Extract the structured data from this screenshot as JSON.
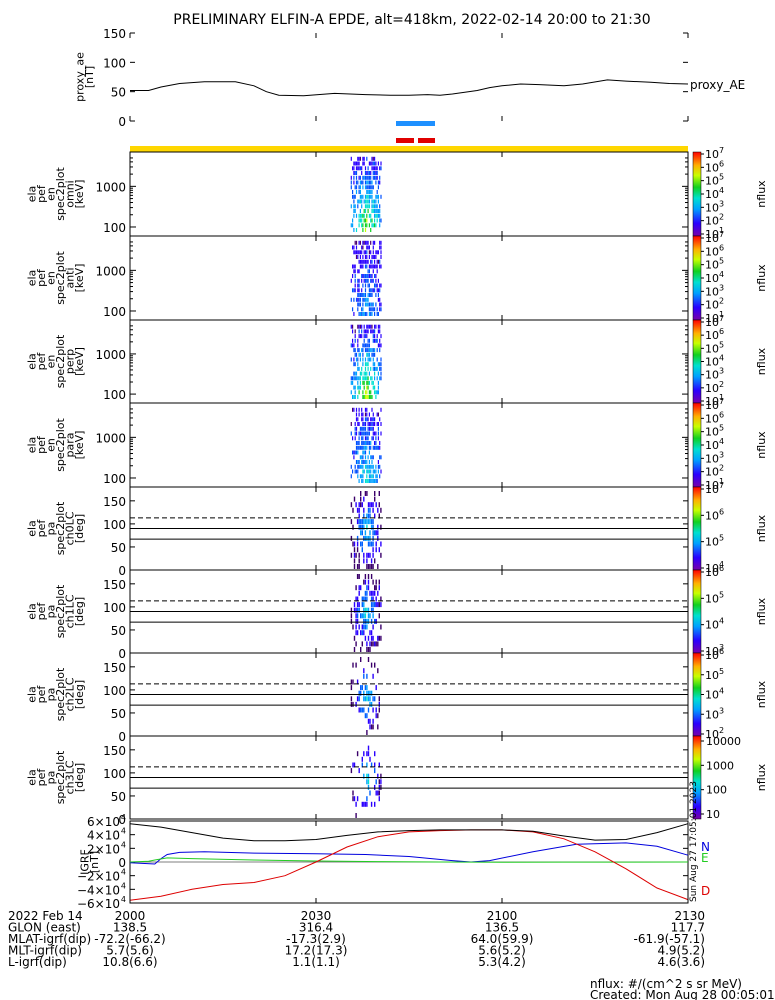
{
  "title": "PRELIMINARY ELFIN-A EPDE, alt=418km, 2022-02-14 20:00 to 21:30",
  "colors": {
    "blue": "#1e90ff",
    "red": "#e00000",
    "yellow": "#ffd700",
    "comp_N": "#0000dd",
    "comp_E": "#22cc22",
    "comp_D": "#dd0000",
    "comp_total": "#000000"
  },
  "time_axis": {
    "range_min": [
      0,
      90
    ],
    "ticks": [
      {
        "min": 0,
        "label": "2000"
      },
      {
        "min": 30,
        "label": "2030"
      },
      {
        "min": 60,
        "label": "2100"
      },
      {
        "min": 90,
        "label": "2130"
      }
    ]
  },
  "chart_data": [
    {
      "type": "line",
      "id": "proxy_ae",
      "ylabel": [
        "proxy_ae",
        "[nT]"
      ],
      "ylim": [
        0,
        150
      ],
      "yticks": [
        "0",
        "50",
        "100",
        "150"
      ],
      "series": [
        {
          "name": "proxy_AE",
          "x": [
            0,
            3,
            5,
            8,
            12,
            17,
            20,
            22,
            24,
            28,
            33,
            38,
            42,
            45,
            48,
            50,
            52,
            56,
            58,
            60,
            63,
            66,
            70,
            73,
            77,
            80,
            84,
            87,
            90
          ],
          "y": [
            52,
            52,
            58,
            64,
            67,
            67,
            60,
            50,
            44,
            43,
            47,
            45,
            44,
            44,
            45,
            44,
            46,
            52,
            57,
            60,
            63,
            62,
            60,
            63,
            70,
            68,
            66,
            64,
            63
          ]
        }
      ]
    },
    {
      "type": "heatmap",
      "id": "en_omni",
      "ylabel": [
        "ela",
        "pef",
        "en",
        "spec2plot",
        "omni",
        "[keV]"
      ],
      "yticks": [
        "100",
        "1000"
      ],
      "colorbar": {
        "labels": [
          "10",
          "10",
          "10",
          "10",
          "10",
          "10",
          "10"
        ],
        "exps": [
          "1",
          "2",
          "3",
          "4",
          "5",
          "6",
          "7"
        ],
        "title": "nflux"
      }
    },
    {
      "type": "heatmap",
      "id": "en_anti",
      "ylabel": [
        "ela",
        "pef",
        "en",
        "spec2plot",
        "anti",
        "[keV]"
      ],
      "yticks": [
        "100",
        "1000"
      ],
      "colorbar": {
        "labels": [
          "10",
          "10",
          "10",
          "10",
          "10",
          "10",
          "10"
        ],
        "exps": [
          "1",
          "2",
          "3",
          "4",
          "5",
          "6",
          "7"
        ],
        "title": "nflux"
      }
    },
    {
      "type": "heatmap",
      "id": "en_perp",
      "ylabel": [
        "ela",
        "pef",
        "en",
        "spec2plot",
        "perp",
        "[keV]"
      ],
      "yticks": [
        "100",
        "1000"
      ],
      "colorbar": {
        "labels": [
          "10",
          "10",
          "10",
          "10",
          "10",
          "10",
          "10"
        ],
        "exps": [
          "1",
          "2",
          "3",
          "4",
          "5",
          "6",
          "7"
        ],
        "title": "nflux"
      }
    },
    {
      "type": "heatmap",
      "id": "en_para",
      "ylabel": [
        "ela",
        "pef",
        "en",
        "spec2plot",
        "para",
        "[keV]"
      ],
      "yticks": [
        "100",
        "1000"
      ],
      "colorbar": {
        "labels": [
          "10",
          "10",
          "10",
          "10",
          "10",
          "10",
          "10"
        ],
        "exps": [
          "1",
          "2",
          "3",
          "4",
          "5",
          "6",
          "7"
        ],
        "title": "nflux"
      }
    },
    {
      "type": "heatmap",
      "id": "pa_ch0",
      "ylabel": [
        "ela",
        "pef",
        "pa",
        "spec2plot",
        "ch0LC",
        "[deg]"
      ],
      "ylim": [
        0,
        180
      ],
      "yticks": [
        "0",
        "50",
        "100",
        "150"
      ],
      "lc_lines": {
        "solid": 67,
        "dashed": 113
      },
      "colorbar": {
        "labels": [
          "10",
          "10",
          "10",
          "10"
        ],
        "exps": [
          "4",
          "5",
          "6",
          "7"
        ],
        "title": "nflux"
      }
    },
    {
      "type": "heatmap",
      "id": "pa_ch1",
      "ylabel": [
        "ela",
        "pef",
        "pa",
        "spec2plot",
        "ch1LC",
        "[deg]"
      ],
      "ylim": [
        0,
        180
      ],
      "yticks": [
        "0",
        "50",
        "100",
        "150"
      ],
      "lc_lines": {
        "solid": 67,
        "dashed": 113
      },
      "colorbar": {
        "labels": [
          "10",
          "10",
          "10",
          "10"
        ],
        "exps": [
          "3",
          "4",
          "5",
          "6"
        ],
        "title": "nflux"
      }
    },
    {
      "type": "heatmap",
      "id": "pa_ch2",
      "ylabel": [
        "ela",
        "pef",
        "pa",
        "spec2plot",
        "ch2LC",
        "[deg]"
      ],
      "ylim": [
        0,
        180
      ],
      "yticks": [
        "0",
        "50",
        "100",
        "150"
      ],
      "lc_lines": {
        "solid": 67,
        "dashed": 113
      },
      "colorbar": {
        "labels": [
          "10",
          "10",
          "10",
          "10",
          "10"
        ],
        "exps": [
          "2",
          "3",
          "4",
          "5",
          "6"
        ],
        "title": "nflux"
      }
    },
    {
      "type": "heatmap",
      "id": "pa_ch3",
      "ylabel": [
        "ela",
        "pef",
        "pa",
        "spec2plot",
        "ch3LC",
        "[deg]"
      ],
      "ylim": [
        0,
        180
      ],
      "yticks": [
        "0",
        "50",
        "100",
        "150"
      ],
      "lc_lines": {
        "solid": 67,
        "dashed": 113
      },
      "colorbar": {
        "plain_labels": [
          "10",
          "100",
          "1000",
          "10000"
        ],
        "title": "nflux"
      }
    },
    {
      "type": "line",
      "id": "igrf",
      "ylabel": [
        "IGRF",
        "[nT]"
      ],
      "ylim": [
        -60000,
        60000
      ],
      "ytick_mantissas": [
        "-6",
        "-4",
        "-2",
        "0",
        "2",
        "4",
        "6"
      ],
      "ytick_label_zero": "0",
      "ytick_base": "×10",
      "ytick_exp": "4",
      "series": [
        {
          "name": "N",
          "x": [
            0,
            2,
            4,
            5,
            6,
            8,
            12,
            20,
            30,
            38,
            45,
            52,
            55,
            58,
            65,
            72,
            80,
            85,
            90
          ],
          "y": [
            -1000,
            -2000,
            -3000,
            5000,
            11000,
            14000,
            15000,
            13000,
            12000,
            11000,
            8000,
            2000,
            0,
            2000,
            15000,
            26000,
            28000,
            23000,
            10000
          ]
        },
        {
          "name": "E",
          "x": [
            0,
            3,
            4,
            6,
            10,
            20,
            30,
            40,
            50,
            60,
            70,
            80,
            90
          ],
          "y": [
            0,
            1000,
            3000,
            6000,
            5000,
            3000,
            1500,
            600,
            0,
            -300,
            -200,
            -100,
            0
          ]
        },
        {
          "name": "D",
          "x": [
            0,
            5,
            10,
            15,
            20,
            25,
            30,
            35,
            40,
            45,
            50,
            55,
            60,
            65,
            70,
            75,
            80,
            85,
            90
          ],
          "y": [
            -56000,
            -50000,
            -40000,
            -33000,
            -30000,
            -20000,
            0,
            22000,
            37000,
            44000,
            46000,
            47000,
            47000,
            44000,
            34000,
            15000,
            -10000,
            -38000,
            -55000
          ]
        },
        {
          "name": "",
          "x": [
            0,
            5,
            10,
            15,
            20,
            25,
            30,
            35,
            40,
            45,
            50,
            55,
            60,
            65,
            70,
            75,
            80,
            85,
            90
          ],
          "y": [
            56000,
            51000,
            43000,
            35000,
            31000,
            31000,
            33000,
            39000,
            44000,
            46000,
            47000,
            47000,
            47000,
            45000,
            38000,
            32000,
            33000,
            43000,
            56000
          ]
        }
      ],
      "component_labels": [
        "N",
        "E",
        "D"
      ]
    }
  ],
  "footer": {
    "rows": [
      {
        "label": "2022 Feb 14",
        "values": [
          "2000",
          "2030",
          "2100",
          "2130"
        ]
      },
      {
        "label": "GLON (east)",
        "values": [
          "138.5",
          "316.4",
          "136.5",
          "117.7"
        ]
      },
      {
        "label": "MLAT-igrf(dip)",
        "values": [
          "-72.2(-66.2)",
          "-17.3(2.9)",
          "64.0(59.9)",
          "-61.9(-57.1)"
        ]
      },
      {
        "label": "MLT-igrf(dip)",
        "values": [
          "5.7(5.6)",
          "17.2(17.3)",
          "5.6(5.2)",
          "4.9(5.2)"
        ]
      },
      {
        "label": "L-igrf(dip)",
        "values": [
          "10.8(6.6)",
          "1.1(1.1)",
          "5.3(4.2)",
          "4.6(3.6)"
        ]
      }
    ],
    "units": "nflux: #/(cm^2 s sr MeV)",
    "created": "Created: Mon Aug 28 00:05:01 2023",
    "side_stamp": "Sun Aug 27 17:05:01 2023"
  }
}
